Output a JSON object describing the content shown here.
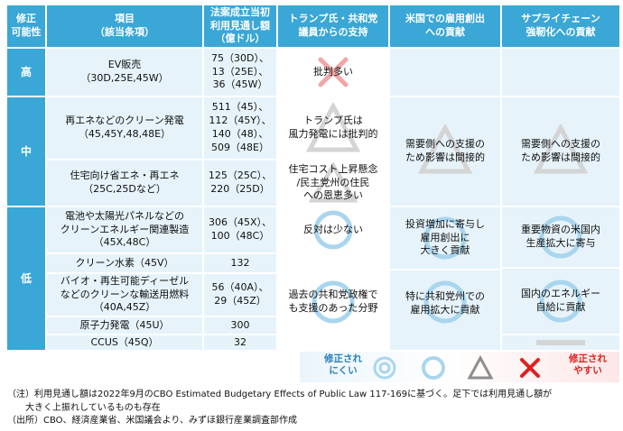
{
  "headers": {
    "col0": "修正\n可能性",
    "col1": "項目\n（該当条項）",
    "col2": "法案成立当初\n利用見通し額\n（億ドル）",
    "col3": "トランプ氏・共和党\n議員からの支持",
    "col4": "米国での雇用創出\nへの貢献",
    "col5": "サプライチェーン\n強靭化への貢献"
  },
  "levels": {
    "high": "高",
    "mid": "中",
    "low": "低"
  },
  "rows": [
    {
      "item": "EV販売\n（30D,25E,45W）",
      "amount": "75（30D）、\n13（25E）、\n36（45W）"
    },
    {
      "item": "再エネなどのクリーン発電\n（45,45Y,48,48E）",
      "amount": "511（45）、\n112（45Y）、\n140（48）、\n509（48E）"
    },
    {
      "item": "住宅向け省エネ・再エネ\n（25C,25Dなど）",
      "amount": "125（25C）、\n220（25D）"
    },
    {
      "item": "電池や太陽光パネルなどの\nクリーンエネルギー関連製造\n（45X,48C）",
      "amount": "306（45X）、\n100（48C）"
    },
    {
      "item": "クリーン水素（45V）",
      "amount": "132"
    },
    {
      "item": "バイオ・再生可能ディーゼル\nなどのクリーンな輸送用燃料\n（40A,45Z）",
      "amount": "56（40A）、\n29（45Z）"
    },
    {
      "item": "原子力発電（45U）",
      "amount": "300"
    },
    {
      "item": "CCUS（45Q）",
      "amount": "32"
    }
  ],
  "support": {
    "r0": "批判多い",
    "r1": "トランプ氏は\n風力発電には批判的",
    "r2": "住宅コスト上昇懸念\n/民主党州の住民\nへの恩恵多い",
    "r3": "反対は少ない",
    "r4": "過去の共和党政権で\nも支援のあった分野"
  },
  "jobs": {
    "mid": "需要側への支援の\nため影響は間接的",
    "low1": "投資増加に寄与し\n雇用創出に\n大きく貢献",
    "low2": "特に共和党州での\n雇用拡大に貢献"
  },
  "supply": {
    "mid": "需要側への支援の\nため影響は間接的",
    "low1": "重要物資の米国内\n生産拡大に寄与",
    "low2": "国内のエネルギー\n自給に貢献"
  },
  "legend": {
    "left": "修正され\nにくい",
    "right": "修正され\nやすい"
  },
  "notes": {
    "note1": "（注）利用見通し額は2022年9月のCBO Estimated Budgetary Effects of Public Law 117-169に基づく。足下では利用見通し額が\n　　大きく上振れしているものも存在",
    "note2": "（出所）CBO、経済産業省、米国議会より、みずほ銀行産業調査部作成"
  },
  "colors": {
    "header": "#3aa7d6",
    "light": "#e6f3fa",
    "red": "#e02020",
    "gray": "#9a9a9a"
  },
  "symbols": {
    "high_support": "cross-mark",
    "mid_support": "triangle",
    "mid_jobs": "triangle",
    "mid_supply": "triangle",
    "r2_support": "triangle",
    "low_support": "circle",
    "low_jobs": "circle",
    "low_supply_1": "circle",
    "low_supply_2": "circle",
    "ccus_supply": "dash",
    "legend": [
      "double-circle",
      "circle",
      "triangle",
      "cross-mark"
    ]
  }
}
